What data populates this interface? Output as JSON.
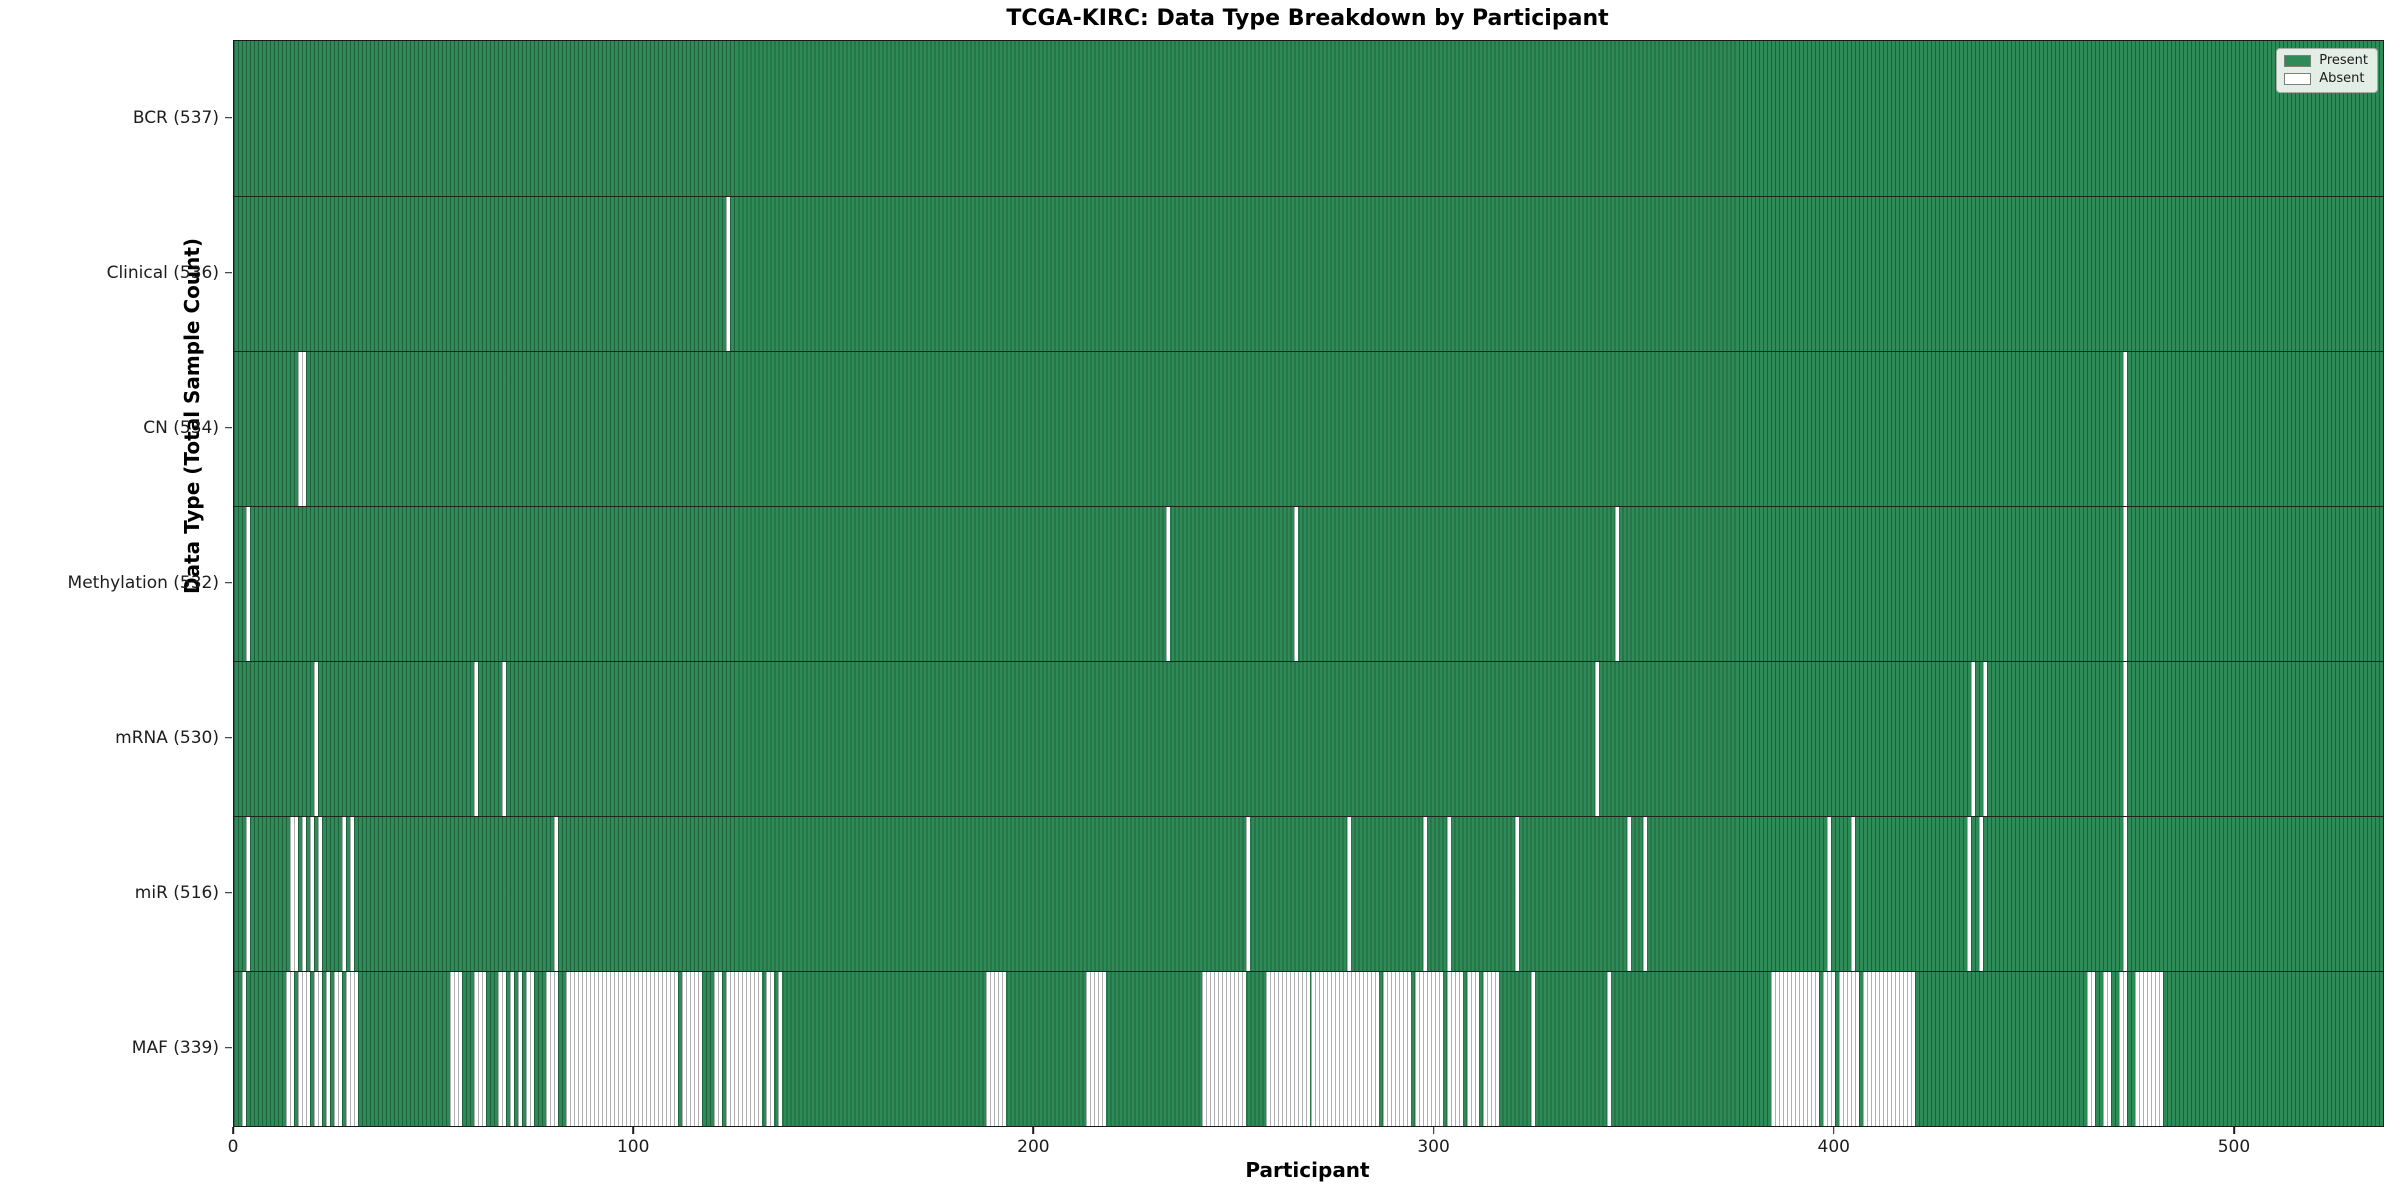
{
  "title": "TCGA-KIRC: Data Type Breakdown by Participant",
  "xlabel": "Participant",
  "ylabel": "Data Type (Total Sample Count)",
  "legend": {
    "entries": [
      {
        "label": "Present",
        "color": "#2e8b57"
      },
      {
        "label": "Absent",
        "color": "#ffffff"
      }
    ],
    "position": "upper right"
  },
  "colors": {
    "present": "#2e8b57",
    "absent": "#ffffff",
    "axis": "#1a1a1a"
  },
  "chart_data": {
    "type": "heatmap",
    "subtype": "presence-absence matrix, one column per participant",
    "n_participants": 537,
    "x_range": [
      0,
      537
    ],
    "x_ticks": [
      0,
      100,
      200,
      300,
      400,
      500
    ],
    "grid": false,
    "legend_position": "upper right",
    "rows": [
      {
        "name": "BCR",
        "label": "BCR (537)",
        "present_count": 537,
        "absent_participants": []
      },
      {
        "name": "Clinical",
        "label": "Clinical (536)",
        "present_count": 536,
        "absent_participants": [
          123
        ]
      },
      {
        "name": "CN",
        "label": "CN (534)",
        "present_count": 534,
        "absent_participants": [
          16,
          17,
          472
        ]
      },
      {
        "name": "Methylation",
        "label": "Methylation (532)",
        "present_count": 532,
        "absent_participants": [
          3,
          233,
          265,
          345,
          472
        ]
      },
      {
        "name": "mRNA",
        "label": "mRNA (530)",
        "present_count": 530,
        "absent_participants": [
          20,
          60,
          67,
          340,
          434,
          437,
          472
        ]
      },
      {
        "name": "miR",
        "label": "miR (516)",
        "present_count": 516,
        "absent_participants": [
          3,
          14,
          15,
          17,
          19,
          21,
          27,
          29,
          80,
          253,
          278,
          297,
          303,
          320,
          348,
          352,
          398,
          404,
          433,
          436,
          472
        ]
      },
      {
        "name": "MAF",
        "label": "MAF (339)",
        "present_count": 339,
        "absent_participants": [
          2,
          13,
          14,
          16,
          17,
          18,
          20,
          21,
          23,
          25,
          26,
          28,
          29,
          30,
          54,
          55,
          56,
          60,
          61,
          62,
          66,
          67,
          69,
          71,
          73,
          74,
          78,
          79,
          80,
          83,
          84,
          85,
          86,
          87,
          88,
          89,
          90,
          91,
          92,
          93,
          94,
          95,
          96,
          97,
          98,
          99,
          100,
          101,
          102,
          103,
          104,
          105,
          106,
          107,
          108,
          109,
          110,
          112,
          113,
          114,
          115,
          116,
          120,
          121,
          123,
          124,
          125,
          126,
          127,
          128,
          129,
          130,
          131,
          133,
          134,
          136,
          188,
          189,
          190,
          191,
          192,
          213,
          214,
          215,
          216,
          217,
          242,
          243,
          244,
          245,
          246,
          247,
          248,
          249,
          250,
          251,
          252,
          258,
          259,
          260,
          261,
          262,
          263,
          264,
          265,
          266,
          267,
          268,
          269,
          270,
          271,
          272,
          273,
          274,
          275,
          276,
          277,
          278,
          279,
          280,
          281,
          282,
          283,
          284,
          285,
          287,
          288,
          289,
          290,
          291,
          292,
          293,
          295,
          296,
          297,
          298,
          299,
          300,
          301,
          303,
          304,
          305,
          306,
          308,
          309,
          310,
          312,
          313,
          314,
          315,
          324,
          343,
          384,
          385,
          386,
          387,
          388,
          389,
          390,
          391,
          392,
          393,
          394,
          395,
          397,
          398,
          399,
          401,
          402,
          403,
          404,
          405,
          407,
          408,
          409,
          410,
          411,
          412,
          413,
          414,
          415,
          416,
          417,
          418,
          419,
          463,
          464,
          467,
          468,
          471,
          472,
          475,
          476,
          477,
          478,
          479,
          480,
          481
        ]
      }
    ]
  }
}
